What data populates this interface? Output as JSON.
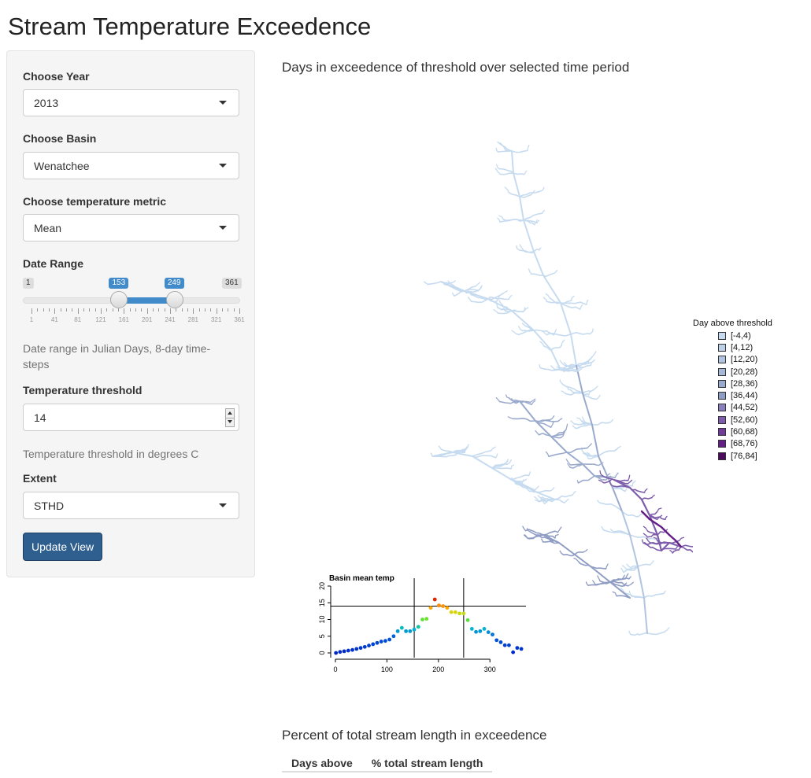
{
  "app": {
    "title": "Stream Temperature Exceedence"
  },
  "sidebar": {
    "year": {
      "label": "Choose Year",
      "value": "2013"
    },
    "basin": {
      "label": "Choose Basin",
      "value": "Wenatchee"
    },
    "metric": {
      "label": "Choose temperature metric",
      "value": "Mean"
    },
    "date_range": {
      "label": "Date Range",
      "min": 1,
      "max": 361,
      "from": 153,
      "to": 249,
      "min_label": "1",
      "max_label": "361",
      "from_label": "153",
      "to_label": "249",
      "grid": [
        "1",
        "41",
        "81",
        "121",
        "161",
        "201",
        "241",
        "281",
        "321",
        "361"
      ],
      "help": "Date range in Julian Days, 8-day time-steps"
    },
    "threshold": {
      "label": "Temperature threshold",
      "value": "14",
      "help": "Temperature threshold in degrees C"
    },
    "extent": {
      "label": "Extent",
      "value": "STHD"
    },
    "update_button": "Update View"
  },
  "main": {
    "map_heading": "Days in exceedence of threshold over selected time period",
    "legend": {
      "title": "Day above threshold",
      "items": [
        {
          "label": "[-4,4)",
          "color": "#c6dbef"
        },
        {
          "label": "[4,12)",
          "color": "#bcd1e8"
        },
        {
          "label": "[12,20)",
          "color": "#b1c5e0"
        },
        {
          "label": "[20,28)",
          "color": "#a5b8d7"
        },
        {
          "label": "[28,36)",
          "color": "#9aaacd"
        },
        {
          "label": "[36,44)",
          "color": "#8f9cc3"
        },
        {
          "label": "[44,52)",
          "color": "#8a7fbd"
        },
        {
          "label": "[52,60)",
          "color": "#7d5cab"
        },
        {
          "label": "[60,68)",
          "color": "#713b99"
        },
        {
          "label": "[68,76)",
          "color": "#641e86"
        },
        {
          "label": "[76,84]",
          "color": "#4d0a5e"
        }
      ]
    },
    "percent_heading": "Percent of total stream length in exceedence",
    "table": {
      "headers": [
        "Days above",
        "% total stream length"
      ]
    }
  },
  "chart_data": {
    "type": "scatter",
    "title": "Basin mean temp",
    "x": [
      1,
      9,
      17,
      25,
      33,
      41,
      49,
      57,
      65,
      73,
      81,
      89,
      97,
      105,
      113,
      121,
      129,
      137,
      145,
      153,
      161,
      169,
      177,
      185,
      193,
      201,
      209,
      217,
      225,
      233,
      241,
      249,
      257,
      265,
      273,
      281,
      289,
      297,
      305,
      313,
      321,
      329,
      337,
      345,
      353,
      361
    ],
    "y": [
      0,
      0.3,
      0.5,
      0.7,
      0.9,
      1.2,
      1.5,
      1.8,
      2.2,
      2.6,
      3.0,
      3.4,
      3.6,
      4.0,
      5.0,
      6.5,
      7.5,
      6.5,
      6.5,
      7.0,
      7.8,
      10.0,
      10.2,
      13.5,
      16.0,
      14.2,
      14.0,
      13.5,
      12.2,
      12.2,
      11.8,
      11.8,
      9.8,
      7.2,
      6.3,
      6.5,
      7.2,
      6.2,
      5.5,
      3.8,
      3.2,
      2.3,
      2.3,
      0.2,
      1.5,
      1.2
    ],
    "xlim": [
      0,
      370
    ],
    "ylim": [
      0,
      20
    ],
    "xticks": [
      0,
      100,
      200,
      300
    ],
    "yticks": [
      0,
      5,
      10,
      15,
      20
    ],
    "vlines": [
      153,
      249
    ],
    "hline": 14,
    "grid": false
  }
}
